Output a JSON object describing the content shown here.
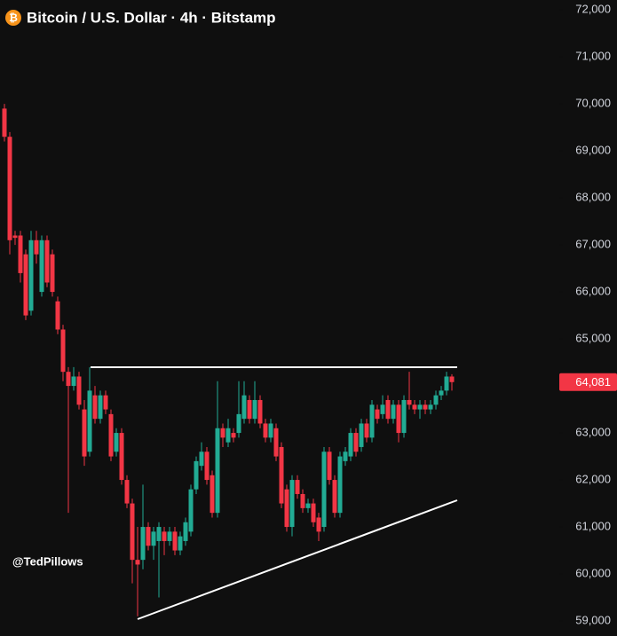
{
  "chart_data": {
    "type": "candlestick",
    "title": "Bitcoin / U.S. Dollar · 4h · Bitstamp",
    "watermark": "@TedPillows",
    "up_color": "#22ab94",
    "down_color": "#f23645",
    "open": [
      69900,
      69300,
      67200,
      67200,
      66800,
      65600,
      67100,
      66000,
      67100,
      66800,
      65800,
      65200,
      64300,
      64000,
      64200,
      63500,
      62600,
      63800,
      63300,
      63800,
      63400,
      62600,
      63000,
      62000,
      61500,
      60300,
      60300,
      61000,
      60600,
      60700,
      60900,
      60700,
      60900,
      60500,
      60700,
      60900,
      61800,
      62300,
      62600,
      62100,
      61300,
      63100,
      62800,
      63000,
      63000,
      63300,
      63700,
      63300,
      63700,
      63200,
      62900,
      63100,
      62700,
      61800,
      61000,
      62000,
      61700,
      61400,
      61500,
      61200,
      61000,
      62600,
      62000,
      61300,
      62400,
      62500,
      63000,
      62700,
      63200,
      62900,
      63500,
      63400,
      63700,
      63300,
      63600,
      63000,
      63700,
      63600,
      63500,
      63600,
      63500,
      63600,
      63800,
      63900,
      64200
    ],
    "high": [
      70000,
      69400,
      67300,
      67300,
      66900,
      67300,
      67300,
      67200,
      67200,
      66900,
      65900,
      65300,
      64400,
      64400,
      64300,
      63700,
      64400,
      64000,
      63900,
      63900,
      63500,
      63100,
      63100,
      62100,
      61600,
      61000,
      61900,
      61100,
      61000,
      61100,
      61000,
      61000,
      61000,
      60900,
      61200,
      61900,
      62500,
      62800,
      62700,
      62200,
      64100,
      63200,
      63300,
      63100,
      64100,
      64100,
      63800,
      64100,
      63800,
      63300,
      63300,
      63200,
      62800,
      61900,
      62100,
      62100,
      61800,
      61600,
      61600,
      61300,
      62700,
      62700,
      62100,
      62600,
      62700,
      63100,
      63100,
      63300,
      63300,
      63700,
      63600,
      63800,
      63800,
      63700,
      63700,
      63800,
      64300,
      63700,
      63700,
      63700,
      63700,
      63900,
      64000,
      64300,
      64250
    ],
    "low": [
      69200,
      66800,
      67000,
      66200,
      65400,
      65500,
      66600,
      65900,
      66100,
      65900,
      65100,
      64100,
      61300,
      63900,
      63500,
      62300,
      62500,
      63200,
      63200,
      63400,
      62400,
      62500,
      61900,
      61400,
      59800,
      59100,
      60100,
      60500,
      60300,
      59500,
      60400,
      60600,
      60400,
      60400,
      60600,
      60800,
      61700,
      62200,
      61900,
      61200,
      61200,
      62700,
      62700,
      62800,
      62900,
      63200,
      63200,
      63200,
      63100,
      62800,
      62800,
      62400,
      61400,
      60900,
      60800,
      61600,
      61300,
      61300,
      61000,
      60700,
      60900,
      61900,
      61200,
      61200,
      62300,
      62400,
      62500,
      62600,
      62800,
      62800,
      63200,
      63300,
      63200,
      63200,
      62800,
      62900,
      63500,
      63400,
      63300,
      63400,
      63400,
      63500,
      63700,
      63800,
      63900
    ],
    "close": [
      69300,
      67100,
      67150,
      66400,
      65500,
      67100,
      66800,
      67100,
      66200,
      66000,
      65200,
      64300,
      64000,
      64200,
      63600,
      62500,
      63900,
      63300,
      63800,
      63500,
      62500,
      63000,
      62000,
      61500,
      60300,
      60200,
      61000,
      60600,
      60900,
      61000,
      60700,
      60900,
      60500,
      60800,
      61100,
      61800,
      62400,
      62600,
      62000,
      61300,
      63100,
      62900,
      63100,
      62900,
      63400,
      63800,
      63300,
      63700,
      63200,
      62900,
      63200,
      62500,
      61500,
      61000,
      62000,
      61700,
      61400,
      61500,
      61100,
      60900,
      62600,
      62000,
      61300,
      62500,
      62600,
      63000,
      62600,
      63200,
      62900,
      63600,
      63300,
      63600,
      63300,
      63600,
      63000,
      63700,
      63600,
      63500,
      63600,
      63500,
      63600,
      63800,
      63900,
      64200,
      64081
    ],
    "last_price": {
      "value": 64081,
      "label": "64,081"
    },
    "ylim": [
      58680,
      72210
    ],
    "yticks": [
      {
        "value": 59000,
        "label": "59,000"
      },
      {
        "value": 60000,
        "label": "60,000"
      },
      {
        "value": 61000,
        "label": "61,000"
      },
      {
        "value": 62000,
        "label": "62,000"
      },
      {
        "value": 63000,
        "label": "63,000"
      },
      {
        "value": 64000,
        "label": "64,000"
      },
      {
        "value": 65000,
        "label": "65,000"
      },
      {
        "value": 66000,
        "label": "66,000"
      },
      {
        "value": 67000,
        "label": "67,000"
      },
      {
        "value": 68000,
        "label": "68,000"
      },
      {
        "value": 69000,
        "label": "69,000"
      },
      {
        "value": 70000,
        "label": "70,000"
      },
      {
        "value": 71000,
        "label": "71,000"
      },
      {
        "value": 72000,
        "label": "72,000"
      }
    ]
  }
}
